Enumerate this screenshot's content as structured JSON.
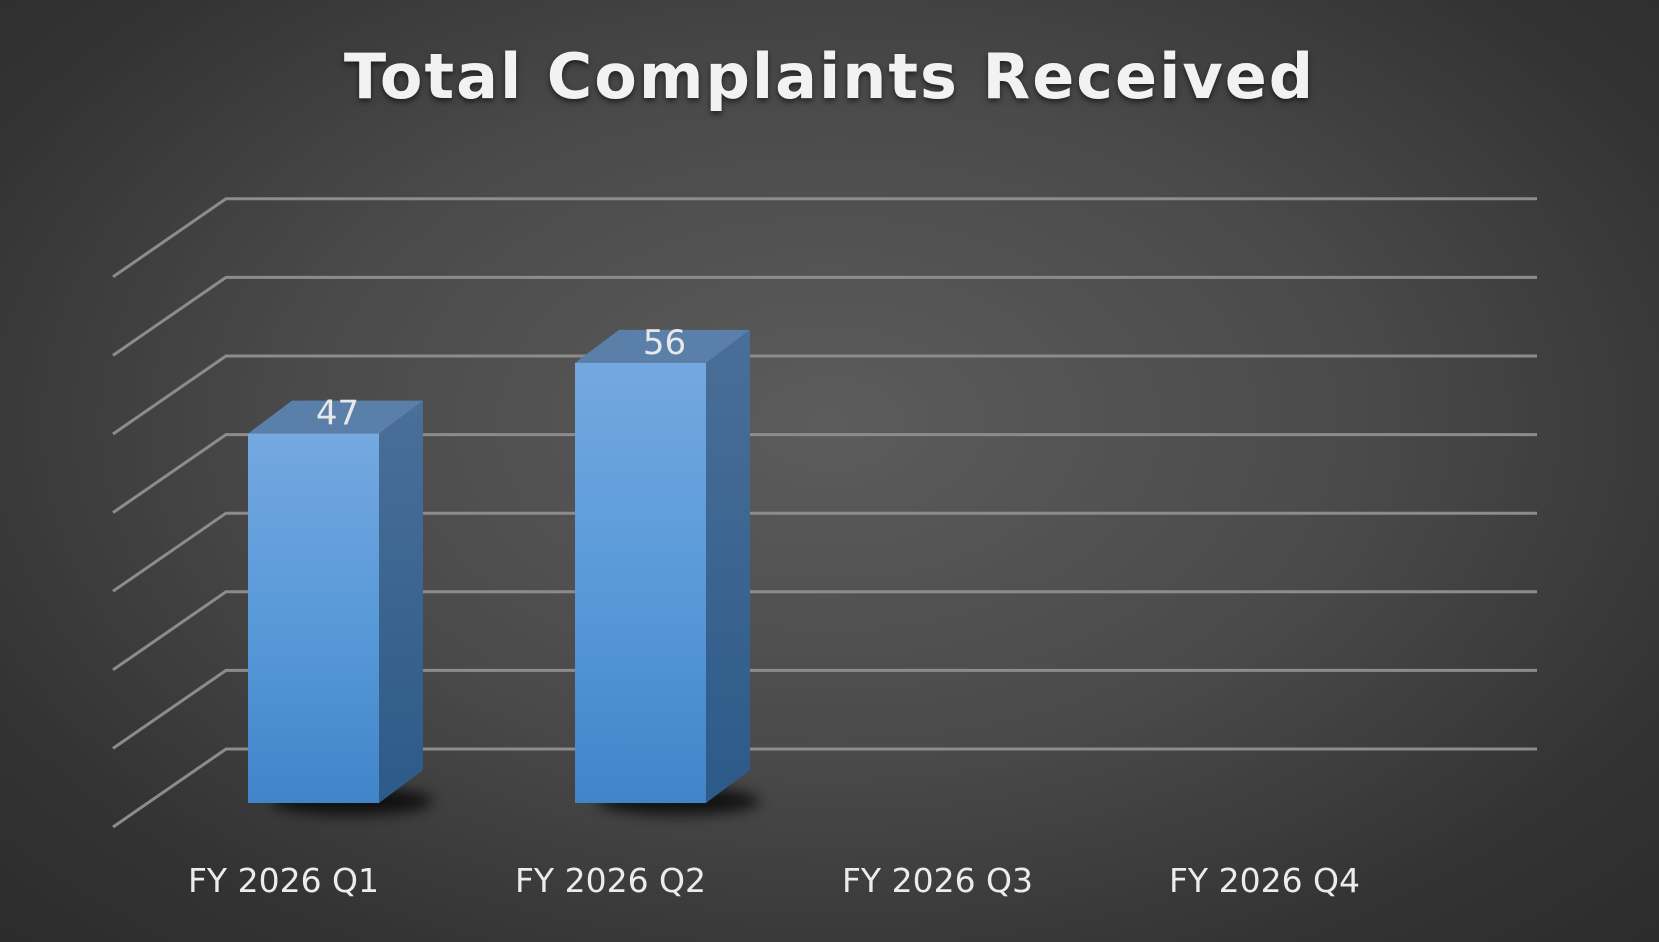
{
  "chart_data": {
    "type": "bar",
    "title": "Total Complaints Received",
    "categories": [
      "FY 2026 Q1",
      "FY 2026 Q2",
      "FY 2026 Q3",
      "FY 2026 Q4"
    ],
    "values": [
      47,
      56,
      null,
      null
    ],
    "data_labels": [
      "47",
      "56",
      "",
      ""
    ],
    "ylim": [
      0,
      70
    ],
    "y_gridlines": [
      0,
      10,
      20,
      30,
      40,
      50,
      60,
      70
    ],
    "xlabel": "",
    "ylabel": "",
    "grid": true,
    "legend": "none",
    "style": "3d-column",
    "bar_color": "#5b9bd5"
  }
}
